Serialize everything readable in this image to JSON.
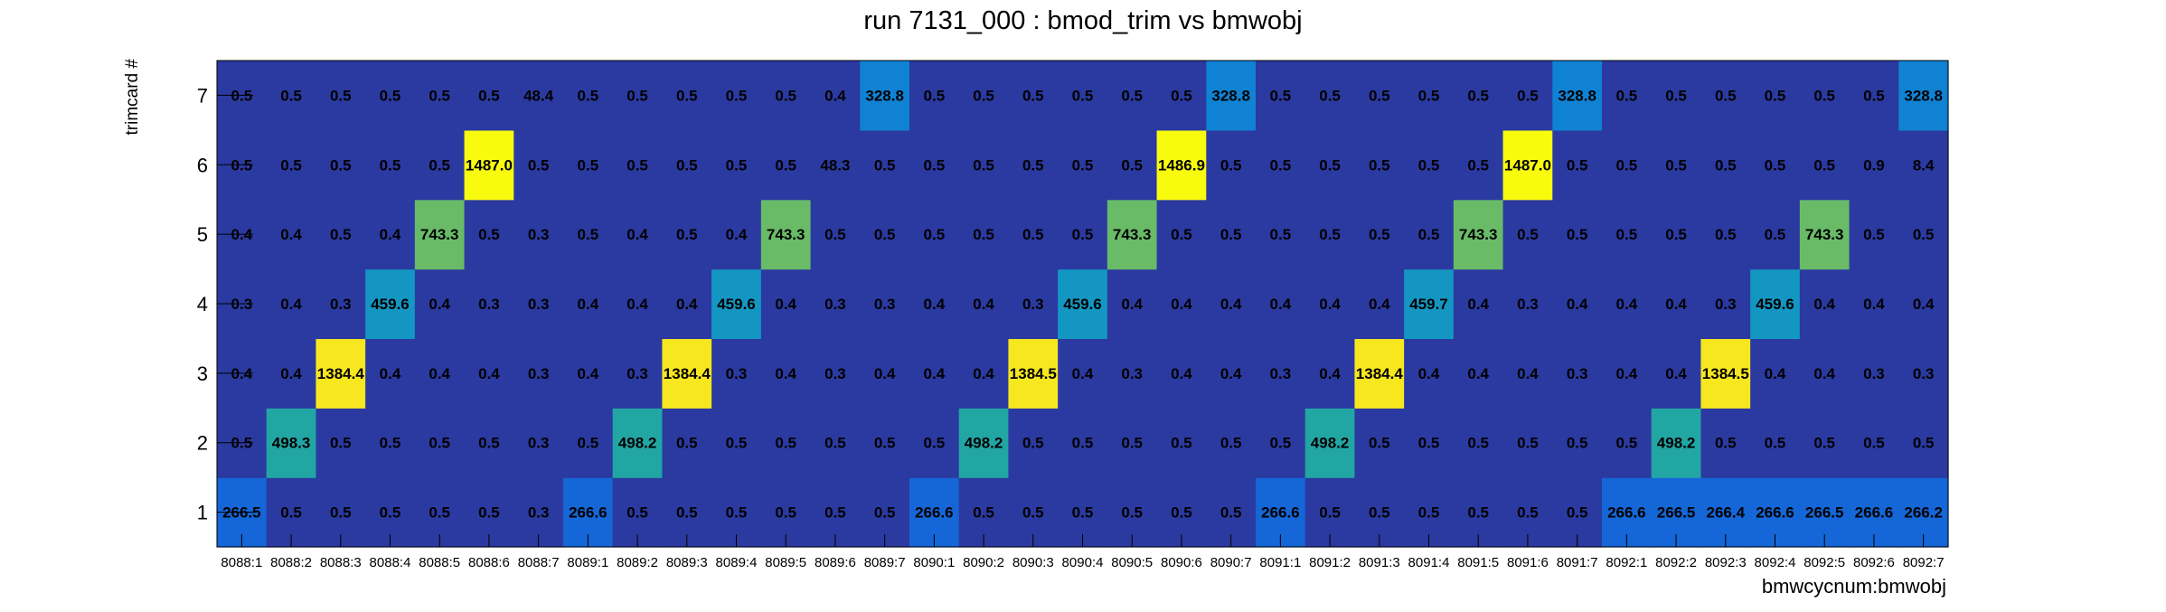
{
  "chart_data": {
    "type": "heatmap",
    "title": "run 7131_000 : bmod_trim vs bmwobj",
    "xlabel": "bmwcycnum:bmwobj",
    "ylabel": "trimcard #",
    "x_categories": [
      "8088:1",
      "8088:2",
      "8088:3",
      "8088:4",
      "8088:5",
      "8088:6",
      "8088:7",
      "8089:1",
      "8089:2",
      "8089:3",
      "8089:4",
      "8089:5",
      "8089:6",
      "8089:7",
      "8090:1",
      "8090:2",
      "8090:3",
      "8090:4",
      "8090:5",
      "8090:6",
      "8090:7",
      "8091:1",
      "8091:2",
      "8091:3",
      "8091:4",
      "8091:5",
      "8091:6",
      "8091:7",
      "8092:1",
      "8092:2",
      "8092:3",
      "8092:4",
      "8092:5",
      "8092:6",
      "8092:7"
    ],
    "y_categories": [
      "1",
      "2",
      "3",
      "4",
      "5",
      "6",
      "7"
    ],
    "values": [
      [
        "266.5",
        "0.5",
        "0.5",
        "0.5",
        "0.5",
        "0.5",
        "0.3",
        "266.6",
        "0.5",
        "0.5",
        "0.5",
        "0.5",
        "0.5",
        "0.5",
        "266.6",
        "0.5",
        "0.5",
        "0.5",
        "0.5",
        "0.5",
        "0.5",
        "266.6",
        "0.5",
        "0.5",
        "0.5",
        "0.5",
        "0.5",
        "0.5",
        "266.6",
        "266.5",
        "266.4",
        "266.6",
        "266.5",
        "266.6",
        "266.2"
      ],
      [
        "0.5",
        "498.3",
        "0.5",
        "0.5",
        "0.5",
        "0.5",
        "0.3",
        "0.5",
        "498.2",
        "0.5",
        "0.5",
        "0.5",
        "0.5",
        "0.5",
        "0.5",
        "498.2",
        "0.5",
        "0.5",
        "0.5",
        "0.5",
        "0.5",
        "0.5",
        "498.2",
        "0.5",
        "0.5",
        "0.5",
        "0.5",
        "0.5",
        "0.5",
        "498.2",
        "0.5",
        "0.5",
        "0.5",
        "0.5",
        "0.5"
      ],
      [
        "0.4",
        "0.4",
        "1384.4",
        "0.4",
        "0.4",
        "0.4",
        "0.3",
        "0.4",
        "0.3",
        "1384.4",
        "0.3",
        "0.4",
        "0.3",
        "0.4",
        "0.4",
        "0.4",
        "1384.5",
        "0.4",
        "0.3",
        "0.4",
        "0.4",
        "0.3",
        "0.4",
        "1384.4",
        "0.4",
        "0.4",
        "0.4",
        "0.3",
        "0.4",
        "0.4",
        "1384.5",
        "0.4",
        "0.4",
        "0.3",
        "0.3"
      ],
      [
        "0.3",
        "0.4",
        "0.3",
        "459.6",
        "0.4",
        "0.3",
        "0.3",
        "0.4",
        "0.4",
        "0.4",
        "459.6",
        "0.4",
        "0.3",
        "0.3",
        "0.4",
        "0.4",
        "0.3",
        "459.6",
        "0.4",
        "0.4",
        "0.4",
        "0.4",
        "0.4",
        "0.4",
        "459.7",
        "0.4",
        "0.3",
        "0.4",
        "0.4",
        "0.4",
        "0.3",
        "459.6",
        "0.4",
        "0.4",
        "0.4"
      ],
      [
        "0.4",
        "0.4",
        "0.5",
        "0.4",
        "743.3",
        "0.5",
        "0.3",
        "0.5",
        "0.4",
        "0.5",
        "0.4",
        "743.3",
        "0.5",
        "0.5",
        "0.5",
        "0.5",
        "0.5",
        "0.5",
        "743.3",
        "0.5",
        "0.5",
        "0.5",
        "0.5",
        "0.5",
        "0.5",
        "743.3",
        "0.5",
        "0.5",
        "0.5",
        "0.5",
        "0.5",
        "0.5",
        "743.3",
        "0.5",
        "0.5"
      ],
      [
        "0.5",
        "0.5",
        "0.5",
        "0.5",
        "0.5",
        "1487.0",
        "0.5",
        "0.5",
        "0.5",
        "0.5",
        "0.5",
        "0.5",
        "48.3",
        "0.5",
        "0.5",
        "0.5",
        "0.5",
        "0.5",
        "0.5",
        "1486.9",
        "0.5",
        "0.5",
        "0.5",
        "0.5",
        "0.5",
        "0.5",
        "1487.0",
        "0.5",
        "0.5",
        "0.5",
        "0.5",
        "0.5",
        "0.5",
        "0.9",
        "8.4"
      ],
      [
        "0.5",
        "0.5",
        "0.5",
        "0.5",
        "0.5",
        "0.5",
        "48.4",
        "0.5",
        "0.5",
        "0.5",
        "0.5",
        "0.5",
        "0.4",
        "328.8",
        "0.5",
        "0.5",
        "0.5",
        "0.5",
        "0.5",
        "0.5",
        "328.8",
        "0.5",
        "0.5",
        "0.5",
        "0.5",
        "0.5",
        "0.5",
        "328.8",
        "0.5",
        "0.5",
        "0.5",
        "0.5",
        "0.5",
        "0.5",
        "328.8"
      ]
    ],
    "zlim": [
      0,
      1487
    ],
    "palette": [
      "#2b3aa0",
      "#1f4fcc",
      "#1566d6",
      "#0f82d4",
      "#1496c2",
      "#22a6a4",
      "#3cb283",
      "#69bb68",
      "#98bd53",
      "#c4bb43",
      "#e6b83c",
      "#f9c036",
      "#f9d22a",
      "#f7e71f",
      "#f9fb0e"
    ],
    "grid": false,
    "legend": "none"
  }
}
